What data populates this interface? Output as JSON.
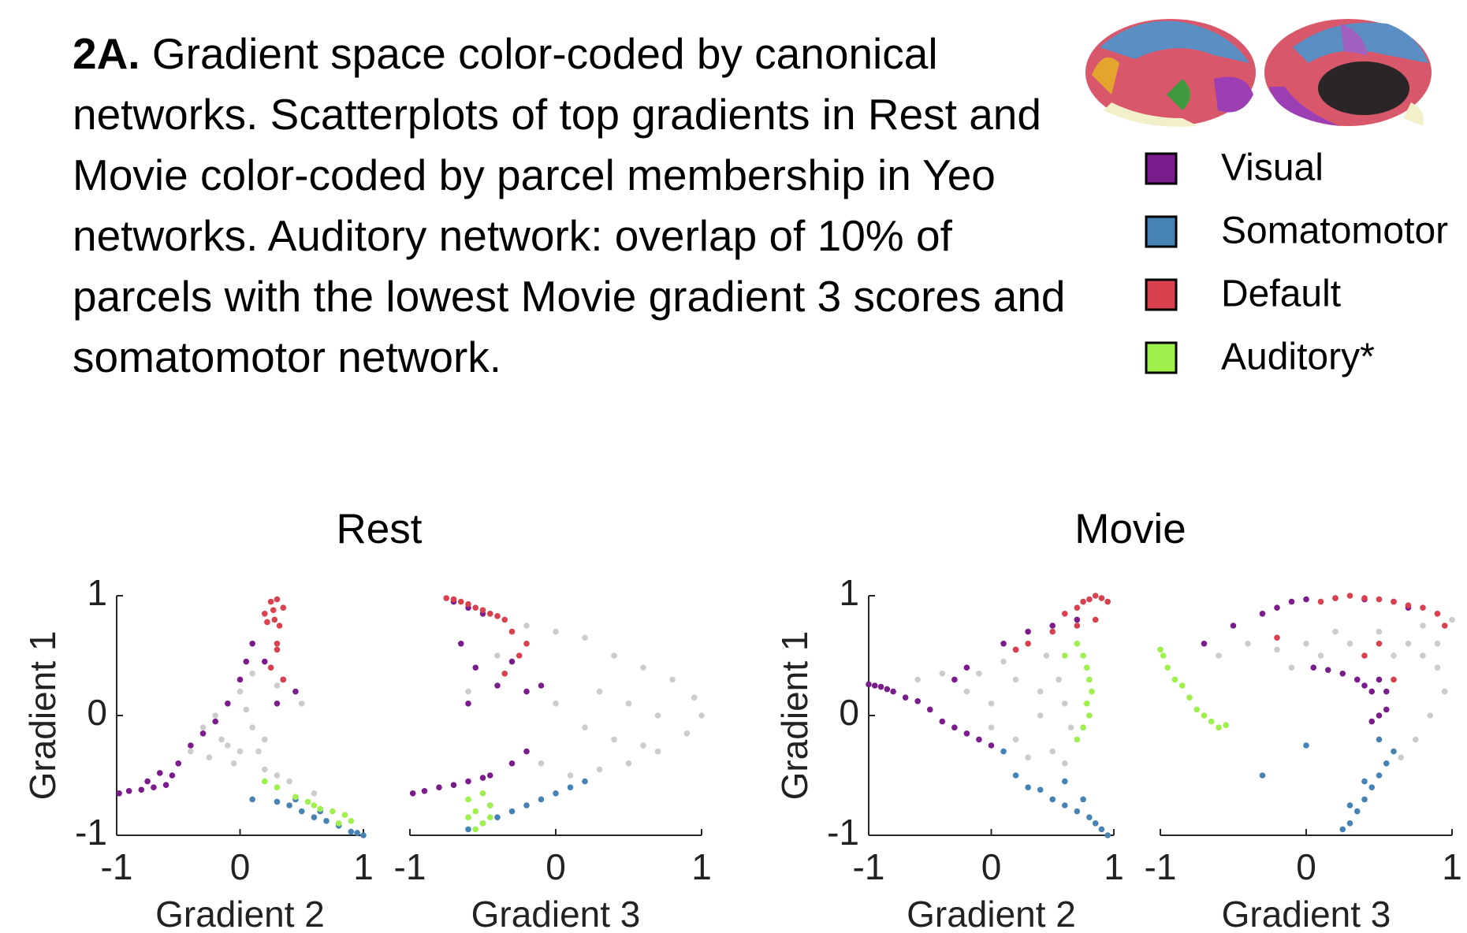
{
  "caption": {
    "label": "2A.",
    "text": "Gradient space color-coded by canonical networks. Scatterplots of top gradients in Rest and Movie color-coded by parcel membership in Yeo networks. Auditory network: overlap of 10% of parcels with the lowest Movie gradient 3 scores and somatomotor network."
  },
  "legend": [
    {
      "name": "Visual",
      "color": "#7b1c8c"
    },
    {
      "name": "Somatomotor",
      "color": "#4682b4"
    },
    {
      "name": "Default",
      "color": "#d9414f"
    },
    {
      "name": "Auditory*",
      "color": "#9ef04c"
    }
  ],
  "chart_data": [
    {
      "type": "scatter",
      "title": "Rest",
      "xlabel": "Gradient 2",
      "ylabel": "Gradient 1",
      "xlim": [
        -1,
        1
      ],
      "ylim": [
        -1,
        1
      ],
      "xticks": [
        -1,
        0,
        1
      ],
      "yticks": [
        -1,
        0,
        1
      ],
      "series": [
        {
          "color": "#cccccc",
          "x": [
            -0.5,
            -0.4,
            -0.3,
            -0.2,
            -0.1,
            0,
            0.05,
            0.1,
            0.15,
            -0.25,
            -0.15,
            -0.05,
            0.1,
            0.2,
            0.3,
            0.4,
            0.5,
            0.3,
            0.2,
            0.0,
            -0.1,
            0.6
          ],
          "values": [
            -0.4,
            -0.3,
            -0.1,
            0,
            0.1,
            0.2,
            0.05,
            -0.1,
            -0.3,
            -0.35,
            -0.2,
            -0.4,
            0.35,
            -0.45,
            -0.5,
            -0.55,
            0.1,
            0.25,
            -0.2,
            -0.3,
            -0.25,
            -0.65
          ]
        },
        {
          "color": "#7b1c8c",
          "x": [
            -0.98,
            -0.9,
            -0.8,
            -0.7,
            -0.6,
            -0.55,
            -0.65,
            -0.75,
            -0.5,
            -0.4,
            -0.3,
            -0.2,
            -0.1,
            0,
            0.05,
            0.1,
            0.2,
            0.35,
            0.45,
            0.3
          ],
          "values": [
            -0.65,
            -0.63,
            -0.62,
            -0.6,
            -0.58,
            -0.5,
            -0.48,
            -0.55,
            -0.4,
            -0.25,
            -0.15,
            -0.05,
            0.1,
            0.3,
            0.45,
            0.6,
            0.45,
            0.3,
            0.2,
            0.1
          ]
        },
        {
          "color": "#4682b4",
          "x": [
            0.1,
            0.3,
            0.4,
            0.5,
            0.6,
            0.7,
            0.8,
            0.9,
            0.95,
            1,
            0.65,
            0.45
          ],
          "values": [
            -0.7,
            -0.72,
            -0.75,
            -0.8,
            -0.85,
            -0.88,
            -0.92,
            -0.97,
            -0.98,
            -1,
            -0.8,
            -0.7
          ]
        },
        {
          "color": "#d9414f",
          "x": [
            0.2,
            0.25,
            0.3,
            0.35,
            0.28,
            0.22,
            0.32,
            0.27,
            0.3,
            0.25,
            0.35,
            0.3
          ],
          "values": [
            0.85,
            0.95,
            0.97,
            0.9,
            0.8,
            0.78,
            0.75,
            0.88,
            0.55,
            0.4,
            0.3,
            0.6
          ]
        },
        {
          "color": "#9ef04c",
          "x": [
            0.2,
            0.3,
            0.45,
            0.55,
            0.65,
            0.75,
            0.85,
            0.9,
            0.8,
            0.6
          ],
          "values": [
            -0.55,
            -0.6,
            -0.68,
            -0.72,
            -0.78,
            -0.8,
            -0.83,
            -0.88,
            -0.9,
            -0.75
          ]
        }
      ]
    },
    {
      "type": "scatter",
      "xlabel": "Gradient 3",
      "xlim": [
        -1,
        1
      ],
      "ylim": [
        -1,
        1
      ],
      "xticks": [
        -1,
        0,
        1
      ],
      "series": [
        {
          "color": "#cccccc",
          "x": [
            -0.2,
            0,
            0.2,
            0.4,
            0.6,
            0.8,
            0.95,
            1,
            0.9,
            0.7,
            0.5,
            0.3,
            0.1,
            -0.1,
            0.3,
            0.5,
            0.7,
            0.2,
            0.4,
            0.6,
            0,
            -0.4,
            -0.6
          ],
          "values": [
            0.75,
            0.7,
            0.65,
            0.5,
            0.4,
            0.3,
            0.15,
            0,
            -0.15,
            -0.3,
            -0.4,
            -0.45,
            -0.5,
            -0.4,
            0.2,
            0.1,
            0,
            -0.1,
            -0.2,
            -0.25,
            0.1,
            0.5,
            0.2
          ]
        },
        {
          "color": "#7b1c8c",
          "x": [
            -0.98,
            -0.9,
            -0.8,
            -0.7,
            -0.6,
            -0.5,
            -0.45,
            -0.3,
            -0.2,
            -0.7,
            -0.6,
            -0.5,
            -0.65,
            -0.55,
            -0.4,
            -0.3,
            -0.6,
            -0.2,
            -0.1
          ],
          "values": [
            -0.65,
            -0.63,
            -0.6,
            -0.58,
            -0.55,
            -0.52,
            -0.5,
            -0.4,
            -0.3,
            0.95,
            0.9,
            0.85,
            0.6,
            0.4,
            0.25,
            0.45,
            0.1,
            0.2,
            0.25
          ]
        },
        {
          "color": "#4682b4",
          "x": [
            -0.6,
            -0.5,
            -0.4,
            -0.3,
            -0.2,
            -0.1,
            0,
            0.1,
            0.2,
            -0.45
          ],
          "values": [
            -0.95,
            -0.9,
            -0.85,
            -0.8,
            -0.75,
            -0.7,
            -0.65,
            -0.6,
            -0.55,
            -0.75
          ]
        },
        {
          "color": "#d9414f",
          "x": [
            -0.75,
            -0.7,
            -0.65,
            -0.6,
            -0.55,
            -0.5,
            -0.45,
            -0.4,
            -0.35,
            -0.3,
            -0.25,
            -0.35,
            -0.2
          ],
          "values": [
            0.98,
            0.97,
            0.95,
            0.93,
            0.9,
            0.88,
            0.85,
            0.83,
            0.8,
            0.7,
            0.5,
            0.35,
            0.6
          ]
        },
        {
          "color": "#9ef04c",
          "x": [
            -0.6,
            -0.55,
            -0.5,
            -0.45,
            -0.6,
            -0.5,
            -0.45,
            -0.55
          ],
          "values": [
            -0.85,
            -0.8,
            -0.9,
            -0.75,
            -0.7,
            -0.65,
            -0.85,
            -0.95
          ]
        }
      ]
    },
    {
      "type": "scatter",
      "title": "Movie",
      "xlabel": "Gradient 2",
      "ylabel": "Gradient 1",
      "xlim": [
        -1,
        1
      ],
      "ylim": [
        -1,
        1
      ],
      "xticks": [
        -1,
        0,
        1
      ],
      "yticks": [
        -1,
        0,
        1
      ],
      "series": [
        {
          "color": "#cccccc",
          "x": [
            -0.6,
            -0.4,
            -0.2,
            0,
            0.2,
            0.4,
            0.6,
            0,
            0.2,
            0.4,
            0.5,
            0.6,
            0.3,
            -0.1,
            0.1,
            0.45,
            0.65,
            0.55
          ],
          "values": [
            0.3,
            0.35,
            0.2,
            0.1,
            0.3,
            0.2,
            0.1,
            -0.1,
            -0.2,
            0,
            -0.3,
            -0.4,
            -0.35,
            0.35,
            0.45,
            0.5,
            -0.1,
            0.3
          ]
        },
        {
          "color": "#7b1c8c",
          "x": [
            -1,
            -0.95,
            -0.9,
            -0.85,
            -0.8,
            -0.7,
            -0.6,
            -0.5,
            -0.4,
            -0.3,
            -0.2,
            -0.1,
            0,
            -0.3,
            -0.2,
            0.1,
            0.3,
            0.5,
            0.7,
            0.2
          ],
          "values": [
            0.26,
            0.25,
            0.24,
            0.22,
            0.2,
            0.15,
            0.12,
            0.05,
            -0.05,
            -0.1,
            -0.15,
            -0.2,
            -0.25,
            0.3,
            0.4,
            0.6,
            0.7,
            0.75,
            0.8,
            0.55
          ]
        },
        {
          "color": "#4682b4",
          "x": [
            0.2,
            0.3,
            0.4,
            0.5,
            0.6,
            0.7,
            0.8,
            0.85,
            0.9,
            0.95,
            0.75,
            0.6,
            0.1
          ],
          "values": [
            -0.5,
            -0.6,
            -0.62,
            -0.7,
            -0.75,
            -0.8,
            -0.85,
            -0.9,
            -0.95,
            -1,
            -0.7,
            -0.55,
            -0.3
          ]
        },
        {
          "color": "#d9414f",
          "x": [
            0.6,
            0.7,
            0.75,
            0.8,
            0.85,
            0.9,
            0.95,
            0.85,
            0.7,
            0.5,
            0.3,
            0.2
          ],
          "values": [
            0.85,
            0.9,
            0.95,
            0.97,
            1,
            0.98,
            0.95,
            0.8,
            0.75,
            0.7,
            0.6,
            0.55
          ]
        },
        {
          "color": "#9ef04c",
          "x": [
            0.7,
            0.75,
            0.78,
            0.8,
            0.82,
            0.78,
            0.8,
            0.75,
            0.7,
            0.6
          ],
          "values": [
            0.6,
            0.5,
            0.4,
            0.3,
            0.2,
            0.1,
            0,
            -0.1,
            -0.2,
            0.5
          ]
        }
      ]
    },
    {
      "type": "scatter",
      "xlabel": "Gradient 3",
      "xlim": [
        -1,
        1
      ],
      "ylim": [
        -1,
        1
      ],
      "xticks": [
        -1,
        0,
        1
      ],
      "series": [
        {
          "color": "#cccccc",
          "x": [
            -0.6,
            -0.4,
            -0.2,
            0,
            0.2,
            0.7,
            0.8,
            0.9,
            1,
            0.95,
            0.85,
            0.75,
            0.65,
            0.5,
            0.3,
            -0.1,
            0.1,
            0.8,
            0.6,
            0.9
          ],
          "values": [
            0.5,
            0.6,
            0.55,
            0.6,
            0.7,
            0.6,
            0.5,
            0.4,
            0.8,
            0.2,
            0,
            -0.2,
            -0.35,
            0.7,
            0.6,
            0.4,
            0.5,
            0.75,
            0.5,
            0.6
          ]
        },
        {
          "color": "#7b1c8c",
          "x": [
            -0.7,
            -0.5,
            -0.3,
            -0.2,
            -0.1,
            0,
            0.2,
            0.4,
            0.6,
            0.7,
            0.05,
            0.15,
            0.25,
            0.35,
            0.4,
            0.45,
            0.5,
            0.55,
            0.5,
            0.45,
            0.55
          ],
          "values": [
            0.6,
            0.75,
            0.85,
            0.9,
            0.95,
            0.97,
            0.98,
            0.97,
            0.95,
            0.9,
            0.4,
            0.38,
            0.35,
            0.3,
            0.25,
            0.2,
            0.3,
            0.2,
            0,
            -0.05,
            0.05
          ]
        },
        {
          "color": "#4682b4",
          "x": [
            0.25,
            0.3,
            0.35,
            0.4,
            0.45,
            0.5,
            0.55,
            0.6,
            0.3,
            0.4,
            0.0,
            -0.3,
            0.5
          ],
          "values": [
            -0.95,
            -0.9,
            -0.8,
            -0.7,
            -0.6,
            -0.5,
            -0.4,
            -0.3,
            -0.75,
            -0.55,
            -0.25,
            -0.5,
            -0.2
          ]
        },
        {
          "color": "#d9414f",
          "x": [
            0.1,
            0.2,
            0.3,
            0.4,
            0.5,
            0.6,
            0.7,
            0.8,
            0.9,
            0.95,
            0.5,
            0.4,
            -0.2,
            0.6
          ],
          "values": [
            0.95,
            0.98,
            1,
            0.98,
            0.97,
            0.95,
            0.92,
            0.9,
            0.85,
            0.75,
            0.6,
            0.5,
            0.65,
            0.3
          ]
        },
        {
          "color": "#9ef04c",
          "x": [
            -1,
            -0.98,
            -0.95,
            -0.9,
            -0.85,
            -0.8,
            -0.75,
            -0.7,
            -0.65,
            -0.6,
            -0.55
          ],
          "values": [
            0.55,
            0.5,
            0.4,
            0.3,
            0.25,
            0.15,
            0.05,
            0,
            -0.05,
            -0.1,
            -0.08
          ]
        }
      ]
    }
  ]
}
